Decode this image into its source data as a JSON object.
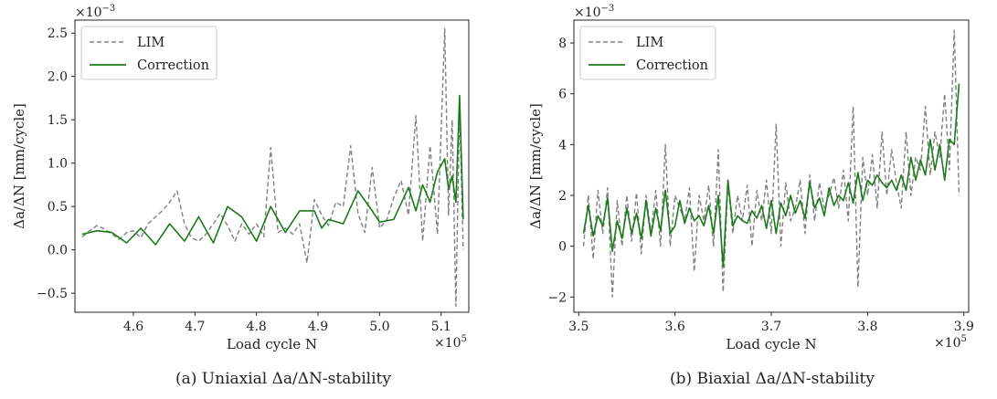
{
  "chart_data": [
    {
      "type": "line",
      "caption": "(a) Uniaxial Δa/ΔN-stability",
      "xlabel": "Load cycle N",
      "ylabel": "Δa/ΔN [mm/cycle]",
      "x_multiplier": "×10",
      "x_exponent": "5",
      "y_multiplier": "×10",
      "y_exponent": "−3",
      "xlim": [
        4.505,
        5.145
      ],
      "ylim": [
        -0.72,
        2.65
      ],
      "xticks": [
        4.5,
        4.6,
        4.7,
        4.8,
        4.9,
        5.0,
        5.1
      ],
      "xtick_labels": [
        "4.5",
        "4.6",
        "4.7",
        "4.8",
        "4.9",
        "5.0",
        "5.1"
      ],
      "yticks": [
        -0.5,
        0.0,
        0.5,
        1.0,
        1.5,
        2.0,
        2.5
      ],
      "ytick_labels": [
        "−0.5",
        "0.0",
        "0.5",
        "1.0",
        "1.5",
        "2.0",
        "2.5"
      ],
      "legend_position": "top-left",
      "series": [
        {
          "name": "LIM",
          "color": "#808080",
          "dashed": true,
          "x": [
            4.517,
            4.529,
            4.541,
            4.553,
            4.565,
            4.577,
            4.589,
            4.6,
            4.612,
            4.624,
            4.636,
            4.647,
            4.659,
            4.671,
            4.683,
            4.694,
            4.706,
            4.718,
            4.73,
            4.741,
            4.753,
            4.765,
            4.776,
            4.788,
            4.8,
            4.812,
            4.823,
            4.835,
            4.847,
            4.859,
            4.87,
            4.882,
            4.894,
            4.906,
            4.917,
            4.929,
            4.941,
            4.953,
            4.965,
            4.976,
            4.988,
            5.0,
            5.012,
            5.023,
            5.035,
            5.047,
            5.059,
            5.07,
            5.082,
            5.094,
            5.106,
            5.112,
            5.118,
            5.124,
            5.13,
            5.136
          ],
          "y": [
            0.15,
            0.22,
            0.28,
            0.24,
            0.18,
            0.12,
            0.2,
            0.22,
            0.14,
            0.3,
            0.38,
            0.45,
            0.55,
            0.68,
            0.3,
            0.14,
            0.1,
            0.18,
            0.3,
            0.42,
            0.28,
            0.1,
            0.3,
            0.18,
            0.3,
            0.15,
            1.18,
            0.2,
            0.25,
            0.18,
            0.3,
            -0.15,
            0.58,
            0.4,
            0.28,
            0.55,
            0.5,
            1.2,
            0.42,
            0.2,
            0.95,
            0.25,
            0.35,
            0.6,
            0.8,
            0.4,
            1.55,
            0.1,
            1.2,
            0.18,
            2.55,
            0.4,
            1.5,
            -0.65,
            1.65,
            0.0
          ]
        },
        {
          "name": "Correction",
          "color": "#1a7a1a",
          "dashed": false,
          "x": [
            4.517,
            4.541,
            4.565,
            4.589,
            4.612,
            4.636,
            4.659,
            4.683,
            4.706,
            4.73,
            4.753,
            4.776,
            4.8,
            4.823,
            4.847,
            4.87,
            4.894,
            4.906,
            4.917,
            4.941,
            4.965,
            4.988,
            5.0,
            5.023,
            5.047,
            5.059,
            5.07,
            5.082,
            5.094,
            5.106,
            5.112,
            5.118,
            5.124,
            5.13,
            5.136
          ],
          "y": [
            0.18,
            0.22,
            0.2,
            0.08,
            0.25,
            0.06,
            0.3,
            0.1,
            0.38,
            0.08,
            0.5,
            0.38,
            0.1,
            0.5,
            0.2,
            0.45,
            0.45,
            0.25,
            0.35,
            0.3,
            0.68,
            0.45,
            0.32,
            0.35,
            0.72,
            0.45,
            0.75,
            0.55,
            0.9,
            1.05,
            0.7,
            0.85,
            0.55,
            1.78,
            0.35
          ]
        }
      ]
    },
    {
      "type": "line",
      "caption": "(b) Biaxial Δa/ΔN-stability",
      "xlabel": "Load cycle N",
      "ylabel": "Δa/ΔN [mm/cycle]",
      "x_multiplier": "×10",
      "x_exponent": "5",
      "y_multiplier": "×10",
      "y_exponent": "−3",
      "xlim": [
        3.495,
        3.905
      ],
      "ylim": [
        -2.6,
        8.9
      ],
      "xticks": [
        3.5,
        3.6,
        3.7,
        3.8,
        3.9
      ],
      "xtick_labels": [
        "3.5",
        "3.6",
        "3.7",
        "3.8",
        "3.9"
      ],
      "yticks": [
        -2,
        0,
        2,
        4,
        6,
        8
      ],
      "ytick_labels": [
        "−2",
        "0",
        "2",
        "4",
        "6",
        "8"
      ],
      "legend_position": "top-left",
      "series": [
        {
          "name": "LIM",
          "color": "#808080",
          "dashed": true,
          "x": [
            3.505,
            3.51,
            3.515,
            3.52,
            3.525,
            3.53,
            3.535,
            3.54,
            3.545,
            3.55,
            3.555,
            3.56,
            3.565,
            3.57,
            3.575,
            3.58,
            3.585,
            3.59,
            3.595,
            3.6,
            3.605,
            3.61,
            3.615,
            3.62,
            3.625,
            3.63,
            3.635,
            3.64,
            3.645,
            3.65,
            3.655,
            3.66,
            3.665,
            3.67,
            3.675,
            3.68,
            3.685,
            3.69,
            3.695,
            3.7,
            3.705,
            3.71,
            3.715,
            3.72,
            3.725,
            3.73,
            3.735,
            3.74,
            3.745,
            3.75,
            3.755,
            3.76,
            3.765,
            3.77,
            3.775,
            3.78,
            3.785,
            3.79,
            3.795,
            3.8,
            3.805,
            3.81,
            3.815,
            3.82,
            3.825,
            3.83,
            3.835,
            3.84,
            3.845,
            3.85,
            3.855,
            3.86,
            3.865,
            3.87,
            3.875,
            3.88,
            3.885,
            3.89,
            3.895
          ],
          "y": [
            0.0,
            2.0,
            -0.5,
            2.2,
            0.5,
            2.3,
            -2.0,
            1.8,
            0.0,
            2.0,
            0.2,
            2.1,
            -0.3,
            2.0,
            0.5,
            2.2,
            0.0,
            4.0,
            0.0,
            2.0,
            1.5,
            1.0,
            2.3,
            -1.0,
            2.0,
            1.0,
            2.4,
            0.0,
            3.8,
            -1.8,
            2.5,
            0.5,
            2.0,
            1.0,
            2.4,
            0.0,
            2.2,
            1.0,
            2.6,
            0.5,
            4.8,
            0.0,
            2.5,
            1.0,
            1.5,
            2.6,
            0.5,
            2.8,
            1.0,
            2.5,
            1.5,
            2.0,
            2.7,
            1.5,
            3.0,
            1.0,
            5.5,
            -1.6,
            3.5,
            2.0,
            3.6,
            1.5,
            4.5,
            2.0,
            3.8,
            2.5,
            1.5,
            4.5,
            2.0,
            3.5,
            3.0,
            5.5,
            2.8,
            4.5,
            3.5,
            6.0,
            3.0,
            8.5,
            2.0
          ]
        },
        {
          "name": "Correction",
          "color": "#1a7a1a",
          "dashed": false,
          "x": [
            3.505,
            3.51,
            3.515,
            3.52,
            3.525,
            3.53,
            3.535,
            3.54,
            3.545,
            3.55,
            3.555,
            3.56,
            3.565,
            3.57,
            3.575,
            3.58,
            3.585,
            3.59,
            3.595,
            3.6,
            3.605,
            3.61,
            3.615,
            3.62,
            3.625,
            3.63,
            3.635,
            3.64,
            3.645,
            3.65,
            3.655,
            3.66,
            3.665,
            3.67,
            3.675,
            3.68,
            3.685,
            3.69,
            3.695,
            3.7,
            3.705,
            3.71,
            3.715,
            3.72,
            3.725,
            3.73,
            3.735,
            3.74,
            3.745,
            3.75,
            3.755,
            3.76,
            3.765,
            3.77,
            3.775,
            3.78,
            3.785,
            3.79,
            3.795,
            3.8,
            3.805,
            3.81,
            3.815,
            3.82,
            3.825,
            3.83,
            3.835,
            3.84,
            3.845,
            3.85,
            3.855,
            3.86,
            3.865,
            3.87,
            3.875,
            3.88,
            3.885,
            3.89,
            3.895
          ],
          "y": [
            0.5,
            1.6,
            0.4,
            1.2,
            0.8,
            1.9,
            -0.2,
            1.0,
            0.3,
            1.5,
            0.5,
            1.3,
            0.3,
            1.8,
            0.4,
            1.5,
            0.6,
            2.2,
            0.5,
            0.8,
            1.8,
            0.9,
            1.5,
            1.0,
            1.2,
            0.8,
            1.6,
            0.5,
            2.0,
            -0.8,
            2.6,
            0.8,
            1.2,
            1.0,
            0.9,
            1.4,
            1.1,
            1.6,
            0.7,
            1.8,
            0.5,
            1.7,
            1.2,
            2.0,
            1.3,
            1.8,
            1.1,
            2.5,
            1.5,
            1.9,
            1.2,
            2.3,
            1.6,
            2.0,
            1.8,
            2.5,
            1.7,
            2.9,
            1.8,
            2.6,
            2.4,
            2.8,
            2.5,
            2.3,
            2.6,
            2.2,
            2.8,
            2.2,
            3.5,
            2.6,
            3.4,
            2.8,
            4.2,
            3.0,
            4.0,
            2.6,
            4.2,
            4.0,
            6.4
          ]
        }
      ]
    }
  ]
}
